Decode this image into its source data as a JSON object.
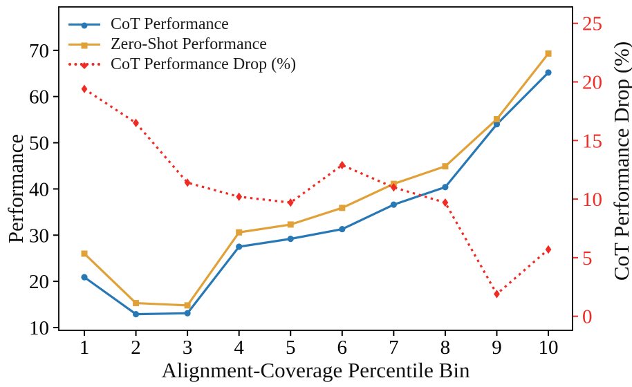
{
  "chart_data": {
    "type": "line",
    "title": "",
    "xlabel": "Alignment-Coverage Percentile Bin",
    "ylabel_left": "Performance",
    "ylabel_right": "CoT Performance Drop (%)",
    "categories": [
      1,
      2,
      3,
      4,
      5,
      6,
      7,
      8,
      9,
      10
    ],
    "x_tick_labels": [
      "1",
      "2",
      "3",
      "4",
      "5",
      "6",
      "7",
      "8",
      "9",
      "10"
    ],
    "yticks_left": [
      10,
      20,
      30,
      40,
      50,
      60,
      70
    ],
    "yticks_right": [
      0,
      5,
      10,
      15,
      20,
      25
    ],
    "ylim_left": [
      9.4,
      79.4
    ],
    "ylim_right": [
      -1.2,
      26.4
    ],
    "grid": false,
    "legend_position": "upper-left",
    "series": [
      {
        "name": "CoT Performance",
        "axis": "left",
        "color": "#2878b5",
        "marker": "circle",
        "linestyle": "solid",
        "values": [
          20.9,
          12.9,
          13.1,
          27.5,
          29.2,
          31.3,
          36.6,
          40.4,
          54.0,
          65.2
        ]
      },
      {
        "name": "Zero-Shot Performance",
        "axis": "left",
        "color": "#e0a139",
        "marker": "square",
        "linestyle": "solid",
        "values": [
          26.0,
          15.3,
          14.8,
          30.6,
          32.3,
          35.9,
          41.1,
          44.9,
          55.1,
          69.3
        ]
      },
      {
        "name": "CoT Performance Drop (%)",
        "axis": "right",
        "color": "#ee2b24",
        "marker": "diamond",
        "linestyle": "dotted",
        "values": [
          19.4,
          16.5,
          11.4,
          10.2,
          9.7,
          12.9,
          11.0,
          9.7,
          1.9,
          5.7
        ]
      }
    ]
  },
  "colors": {
    "background": "#ffffff",
    "spine": "#000000",
    "left_tick_color": "#000000",
    "right_tick_color": "#ee2b24",
    "tick_label_left": "#000000",
    "tick_label_bottom": "#000000"
  }
}
